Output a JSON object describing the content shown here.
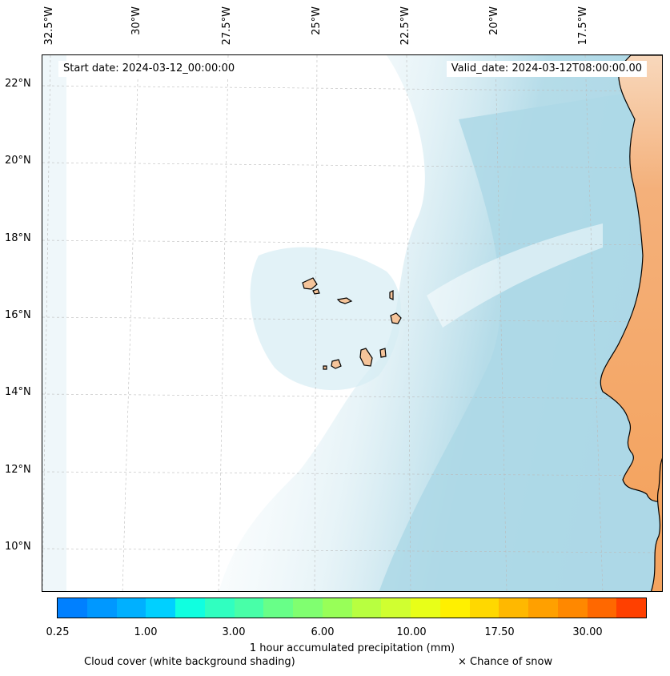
{
  "map": {
    "start_date": "Start date: 2024-03-12_00:00:00",
    "valid_date": "Valid_date: 2024-03-12T08:00:00.00",
    "lon_labels": [
      "32.5°W",
      "30°W",
      "27.5°W",
      "25°W",
      "22.5°W",
      "20°W",
      "17.5°W"
    ],
    "lat_labels": [
      "22°N",
      "20°N",
      "18°N",
      "16°N",
      "14°N",
      "12°N",
      "10°N"
    ],
    "colors": {
      "cloud": "#add8e6",
      "land": "#f5c49a",
      "land_warm": "#f4a460",
      "coast": "#000000"
    }
  },
  "colorbar": {
    "label": "1 hour accumulated precipitation (mm)",
    "tick_labels": [
      "0.25",
      "1.00",
      "3.00",
      "6.00",
      "10.00",
      "17.50",
      "30.00"
    ],
    "colors": [
      "#0080ff",
      "#0098ff",
      "#00b0ff",
      "#00d0ff",
      "#10ffe0",
      "#30ffc0",
      "#48ffa8",
      "#68ff88",
      "#80ff70",
      "#98ff58",
      "#b8ff40",
      "#d0ff30",
      "#e8ff18",
      "#fff000",
      "#ffd800",
      "#ffb800",
      "#ffa000",
      "#ff8800",
      "#ff6800",
      "#ff4000"
    ]
  },
  "footer": {
    "cloud_note": "Cloud cover (white background shading)",
    "snow_note": "× Chance of snow"
  }
}
